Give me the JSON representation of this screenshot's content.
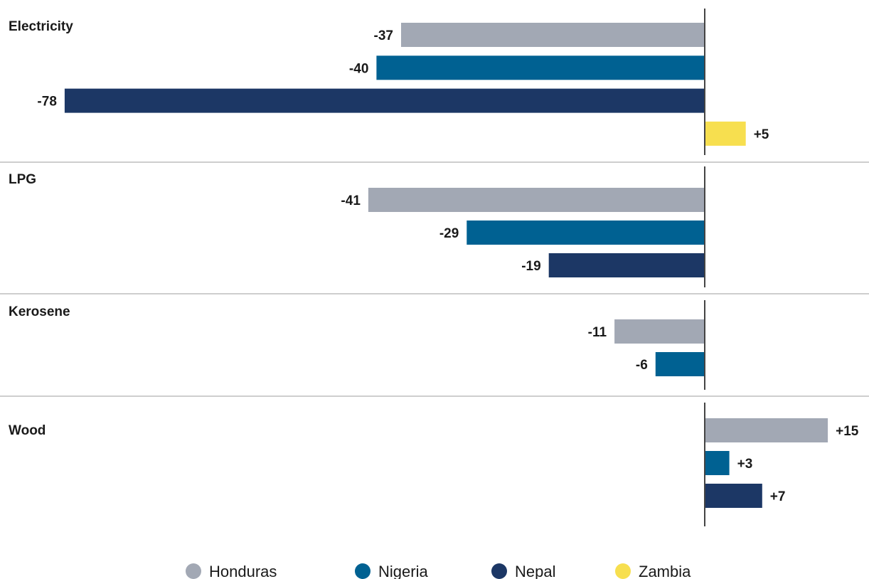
{
  "chart_data": {
    "type": "bar",
    "orientation": "horizontal",
    "grouped_by": "fuel",
    "groups": [
      {
        "title": "Electricity",
        "values": [
          {
            "series": "Honduras",
            "value": -37,
            "label": "-37"
          },
          {
            "series": "Nigeria",
            "value": -40,
            "label": "-40"
          },
          {
            "series": "Nepal",
            "value": -78,
            "label": "-78"
          },
          {
            "series": "Zambia",
            "value": 5,
            "label": "+5"
          }
        ]
      },
      {
        "title": "LPG",
        "values": [
          {
            "series": "Honduras",
            "value": -41,
            "label": "-41"
          },
          {
            "series": "Nigeria",
            "value": -29,
            "label": "-29"
          },
          {
            "series": "Nepal",
            "value": -19,
            "label": "-19"
          }
        ]
      },
      {
        "title": "Kerosene",
        "values": [
          {
            "series": "Honduras",
            "value": -11,
            "label": "-11"
          },
          {
            "series": "Nigeria",
            "value": -6,
            "label": "-6"
          }
        ]
      },
      {
        "title": "Wood",
        "values": [
          {
            "series": "Honduras",
            "value": 15,
            "label": "+15"
          },
          {
            "series": "Nigeria",
            "value": 3,
            "label": "+3"
          },
          {
            "series": "Nepal",
            "value": 7,
            "label": "+7"
          }
        ]
      }
    ],
    "series": [
      {
        "name": "Honduras",
        "color": "#a2a8b4"
      },
      {
        "name": "Nigeria",
        "color": "#006192"
      },
      {
        "name": "Nepal",
        "color": "#1c3765"
      },
      {
        "name": "Zambia",
        "color": "#f7df4f"
      }
    ],
    "xlim": [
      -78,
      17
    ],
    "legend_position": "bottom",
    "grid": false
  }
}
